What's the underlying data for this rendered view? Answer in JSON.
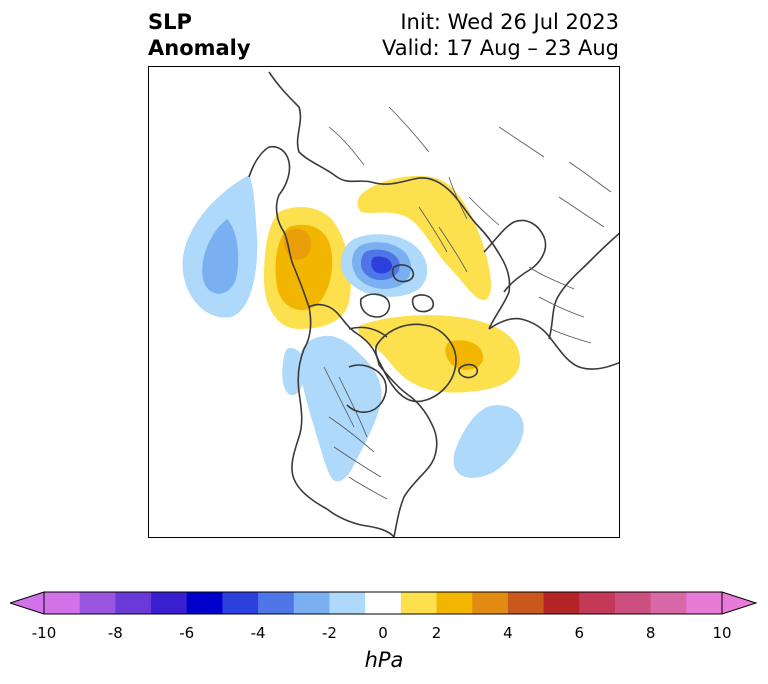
{
  "header": {
    "title_line1": "SLP",
    "title_line2": "Anomaly",
    "init": "Init: Wed 26 Jul 2023",
    "valid": "Valid: 17 Aug – 23 Aug"
  },
  "map": {
    "projection": "north-polar-stereographic",
    "variable": "sea level pressure anomaly",
    "coastline_color": "#3a3a3a",
    "features": [
      {
        "name": "central-arctic-low",
        "sign": "negative",
        "peak_hpa": -6,
        "region": "Arctic Ocean near pole"
      },
      {
        "name": "eastern-pacific-low",
        "sign": "negative",
        "peak_hpa": -3,
        "region": "North Pacific"
      },
      {
        "name": "western-north-america-low",
        "sign": "negative",
        "peak_hpa": -2,
        "region": "Western Canada / western US"
      },
      {
        "name": "north-atlantic-low",
        "sign": "negative",
        "peak_hpa": -2,
        "region": "Central North Atlantic"
      },
      {
        "name": "siberian-high",
        "sign": "positive",
        "peak_hpa": 3,
        "region": "Eastern Siberia"
      },
      {
        "name": "russia-high",
        "sign": "positive",
        "peak_hpa": 2,
        "region": "Northern Russia / Kara Sea"
      },
      {
        "name": "greenland-high",
        "sign": "positive",
        "peak_hpa": 3,
        "region": "Greenland / Iceland"
      }
    ]
  },
  "colorbar": {
    "unit_label": "hPa",
    "bounds": [
      -10,
      -9,
      -8,
      -7,
      -6,
      -5,
      -4,
      -3,
      -2,
      -1,
      1,
      2,
      3,
      4,
      5,
      6,
      7,
      8,
      9,
      10
    ],
    "colors": [
      "#d272e8",
      "#9a55e0",
      "#6a3ad8",
      "#3a1fd0",
      "#0000cd",
      "#2b40dc",
      "#4f76e6",
      "#7ab0f2",
      "#aed9fa",
      "#ffffff",
      "#fde04d",
      "#f2b600",
      "#e28b12",
      "#c8581c",
      "#b42527",
      "#c23a58",
      "#cc4f80",
      "#d868a8",
      "#e87ad8"
    ],
    "extend_low_color": "#d272e8",
    "extend_high_color": "#e87ad8",
    "tick_labels": [
      "-10",
      "-8",
      "-6",
      "-4",
      "-2",
      "0",
      "2",
      "4",
      "6",
      "8",
      "10"
    ]
  }
}
